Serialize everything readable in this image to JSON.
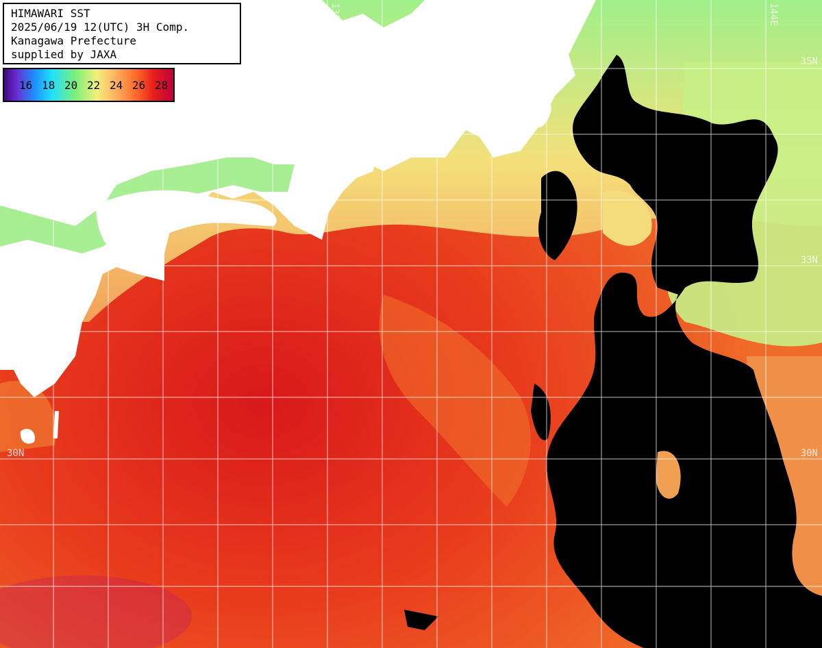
{
  "title": {
    "line1": "HIMAWARI SST",
    "line2": "2025/06/19 12(UTC) 3H Comp.",
    "line3": "Kanagawa Prefecture",
    "line4": "supplied by JAXA"
  },
  "legend": {
    "unit_labels": [
      "16",
      "18",
      "20",
      "22",
      "24",
      "26",
      "28"
    ]
  },
  "grid_labels": {
    "lat_35n_right": "35N",
    "lat_33n_right": "33N",
    "lat_30n_left": "30N",
    "lat_30n_right": "30N",
    "lon_136e": "136E",
    "lon_144e": "144E"
  },
  "colors": {
    "land": "#ffffff",
    "cloud_mask": "#000000",
    "sea_warm": "#e8301a",
    "sea_mid": "#f07a30",
    "sea_cool": "#c8f080",
    "grid": "#ffffff"
  }
}
